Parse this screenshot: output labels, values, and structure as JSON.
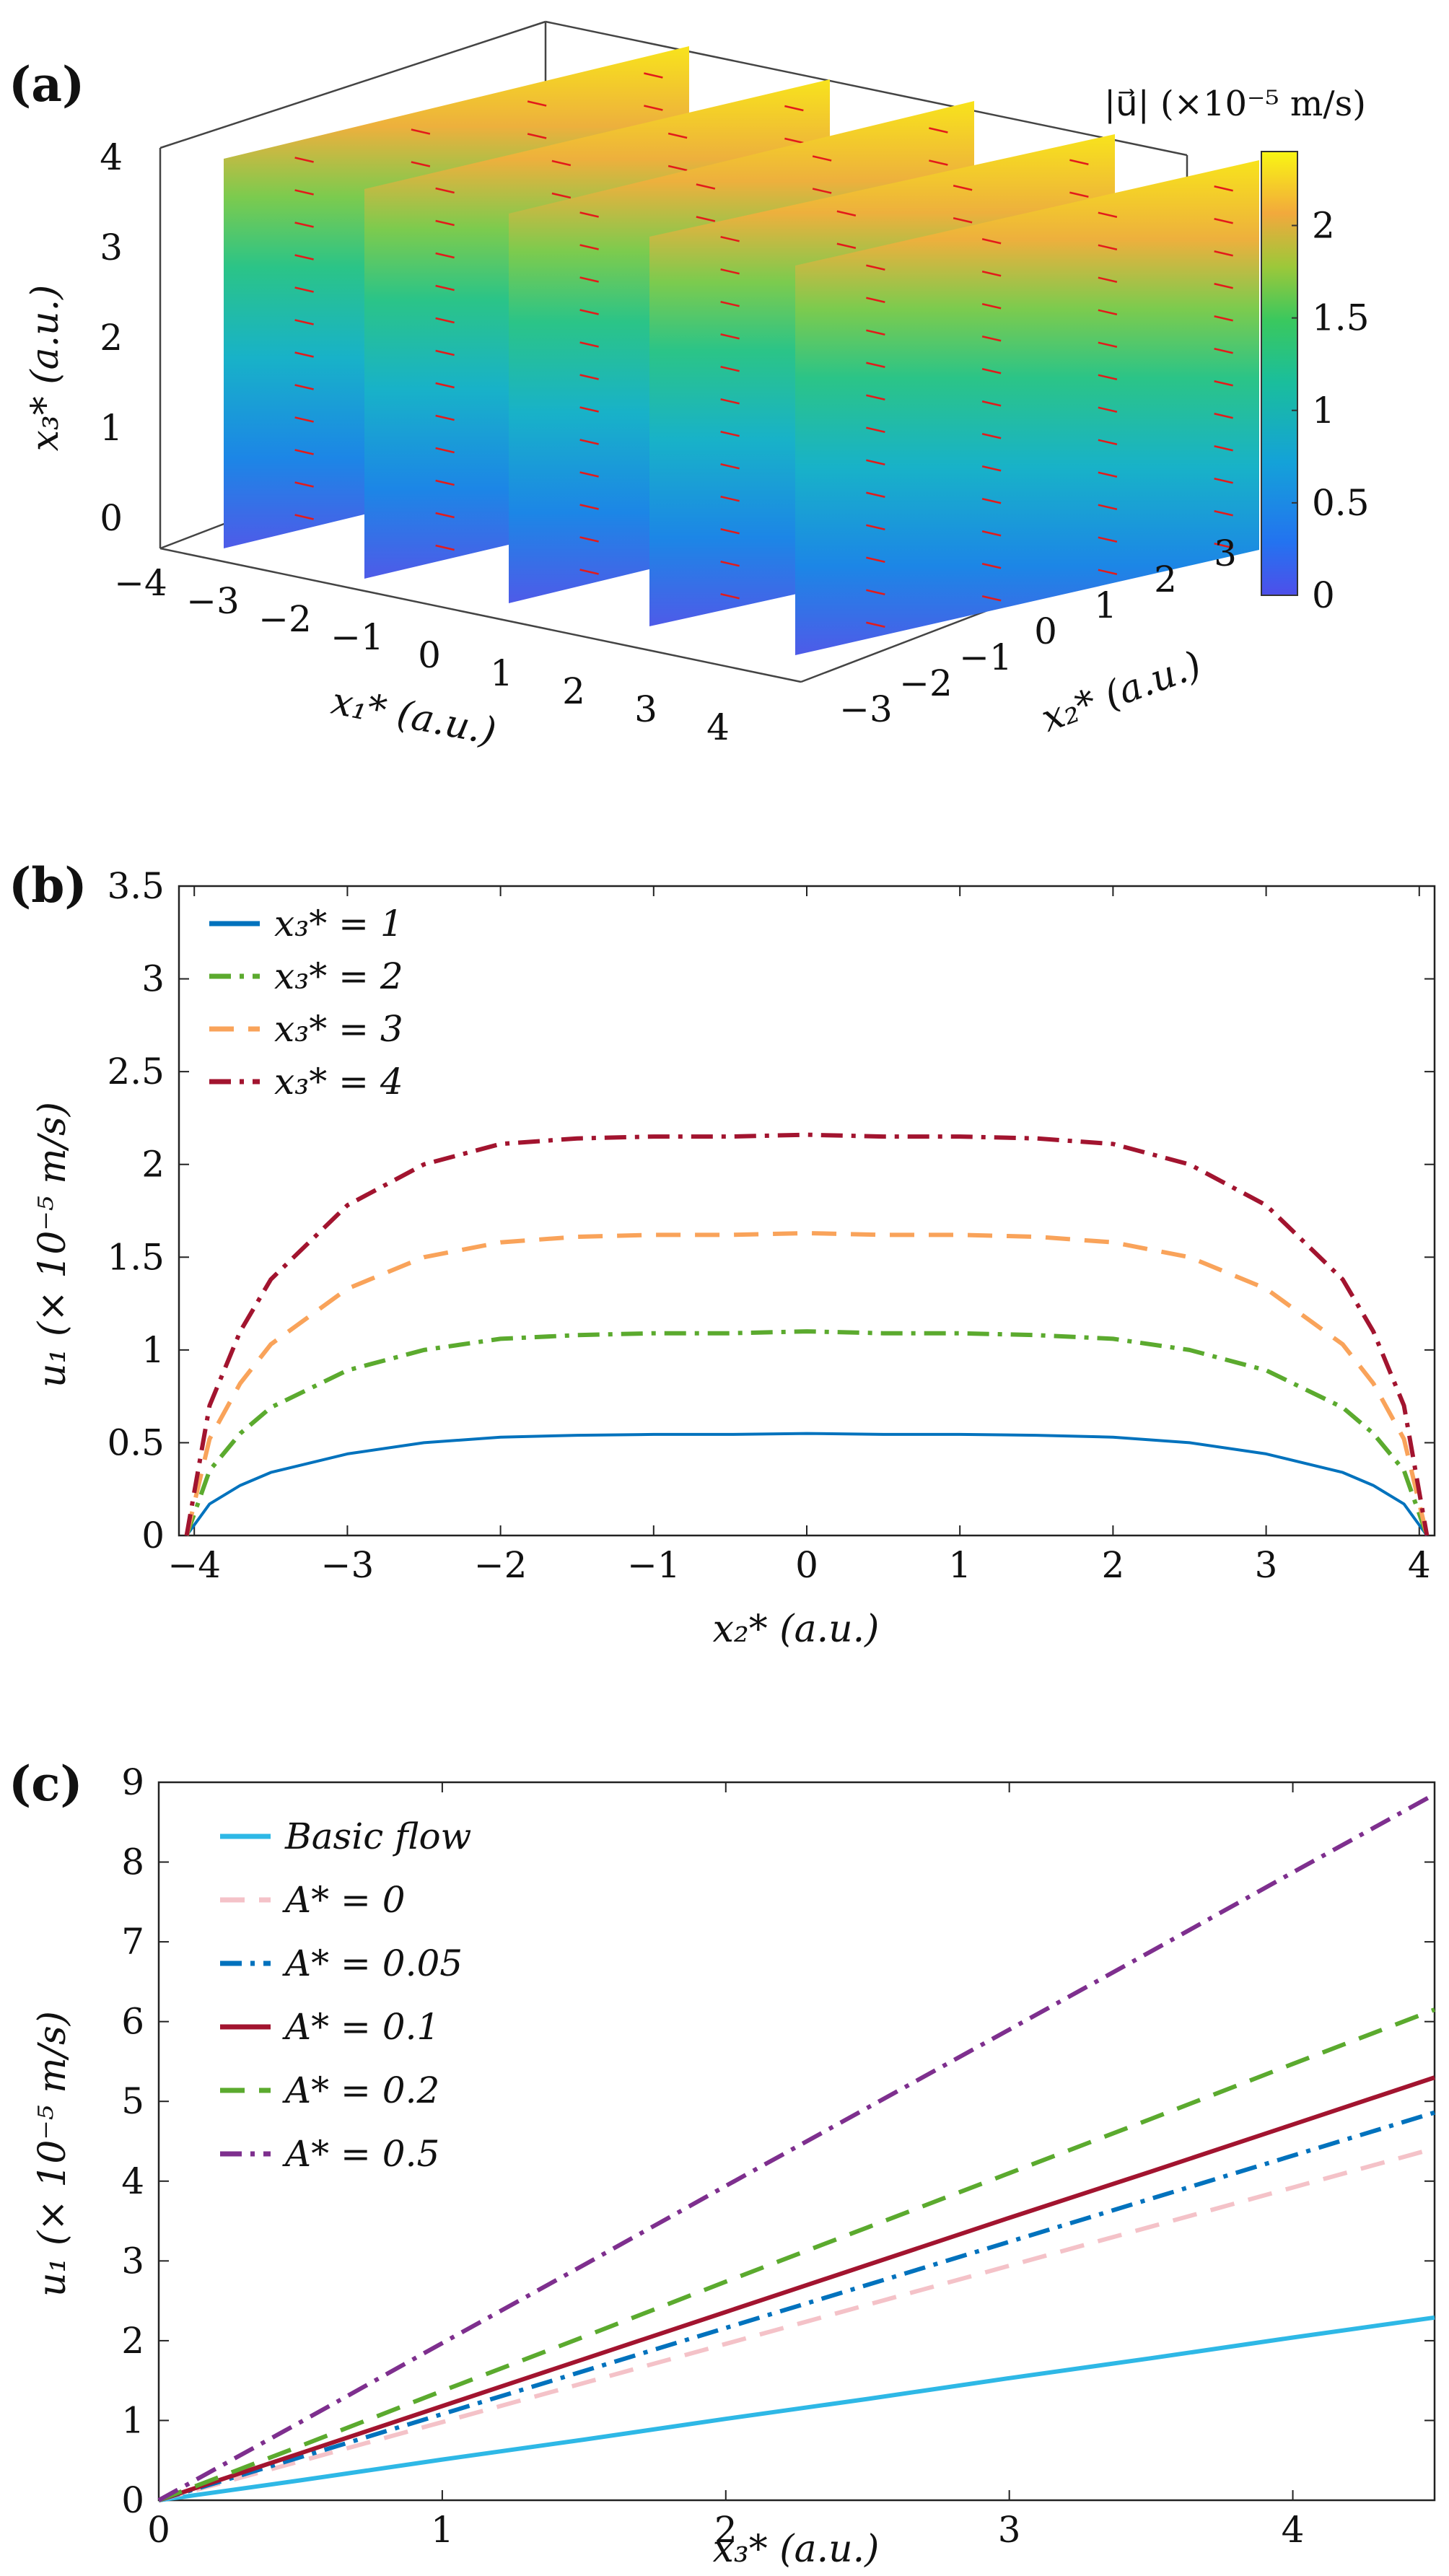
{
  "panel_a": {
    "label": "(a)",
    "colorbar_title": "|u⃗| (×10⁻⁵ m/s)",
    "colorbar_ticks": [
      "0",
      "0.5",
      "1",
      "1.5",
      "2"
    ],
    "colorbar_range": [
      0,
      2.4
    ],
    "x1_label": "x₁* (a.u.)",
    "x2_label": "x₂* (a.u.)",
    "x3_label": "x₃* (a.u.)",
    "x1_ticks": [
      "−4",
      "−3",
      "−2",
      "−1",
      "0",
      "1",
      "2",
      "3",
      "4"
    ],
    "x2_ticks": [
      "−3",
      "−2",
      "−1",
      "0",
      "1",
      "2",
      "3"
    ],
    "x3_ticks": [
      "0",
      "1",
      "2",
      "3",
      "4"
    ],
    "slice_count": 5
  },
  "chart_data": [
    {
      "id": "b",
      "type": "line",
      "panel_label": "(b)",
      "xlabel": "x₂* (a.u.)",
      "ylabel": "u₁ (× 10⁻⁵ m/s)",
      "xlim": [
        -4.1,
        4.1
      ],
      "ylim": [
        0,
        3.5
      ],
      "xticks": [
        -4,
        -3,
        -2,
        -1,
        0,
        1,
        2,
        3,
        4
      ],
      "xtick_labels": [
        "−4",
        "−3",
        "−2",
        "−1",
        "0",
        "1",
        "2",
        "3",
        "4"
      ],
      "yticks": [
        0,
        0.5,
        1,
        1.5,
        2,
        2.5,
        3,
        3.5
      ],
      "ytick_labels": [
        "0",
        "0.5",
        "1",
        "1.5",
        "2",
        "2.5",
        "3",
        "3.5"
      ],
      "legend_position": "top-left",
      "x": [
        -4.05,
        -3.9,
        -3.7,
        -3.5,
        -3.0,
        -2.5,
        -2.0,
        -1.5,
        -1.0,
        -0.5,
        0.0,
        0.5,
        1.0,
        1.5,
        2.0,
        2.5,
        3.0,
        3.5,
        3.7,
        3.9,
        4.05
      ],
      "series": [
        {
          "name": "x₃* = 1",
          "color": "#0072BD",
          "dash": "solid",
          "values": [
            0.0,
            0.17,
            0.27,
            0.34,
            0.44,
            0.5,
            0.53,
            0.54,
            0.545,
            0.545,
            0.55,
            0.545,
            0.545,
            0.54,
            0.53,
            0.5,
            0.44,
            0.34,
            0.27,
            0.17,
            0.0
          ]
        },
        {
          "name": "x₃* = 2",
          "color": "#5BAA2E",
          "dash": "dashdot",
          "values": [
            0.0,
            0.35,
            0.55,
            0.69,
            0.89,
            1.0,
            1.06,
            1.08,
            1.09,
            1.09,
            1.1,
            1.09,
            1.09,
            1.08,
            1.06,
            1.0,
            0.89,
            0.69,
            0.55,
            0.35,
            0.0
          ]
        },
        {
          "name": "x₃* = 3",
          "color": "#F9A35A",
          "dash": "dashed",
          "values": [
            0.0,
            0.52,
            0.82,
            1.03,
            1.33,
            1.5,
            1.58,
            1.61,
            1.62,
            1.62,
            1.63,
            1.62,
            1.62,
            1.61,
            1.58,
            1.5,
            1.33,
            1.03,
            0.82,
            0.52,
            0.0
          ]
        },
        {
          "name": "x₃* = 4",
          "color": "#A2142F",
          "dash": "dashdot",
          "values": [
            0.0,
            0.7,
            1.1,
            1.38,
            1.78,
            2.0,
            2.11,
            2.14,
            2.15,
            2.15,
            2.16,
            2.15,
            2.15,
            2.14,
            2.11,
            2.0,
            1.78,
            1.38,
            1.1,
            0.7,
            0.0
          ]
        }
      ]
    },
    {
      "id": "c",
      "type": "line",
      "panel_label": "(c)",
      "xlabel": "x₃* (a.u.)",
      "ylabel": "u₁ (× 10⁻⁵ m/s)",
      "xlim": [
        0,
        4.5
      ],
      "ylim": [
        0,
        9
      ],
      "xticks": [
        0,
        1,
        2,
        3,
        4
      ],
      "xtick_labels": [
        "0",
        "1",
        "2",
        "3",
        "4"
      ],
      "yticks": [
        0,
        1,
        2,
        3,
        4,
        5,
        6,
        7,
        8,
        9
      ],
      "ytick_labels": [
        "0",
        "1",
        "2",
        "3",
        "4",
        "5",
        "6",
        "7",
        "8",
        "9"
      ],
      "legend_position": "top-left",
      "x": [
        0,
        0.5,
        1.0,
        1.5,
        2.0,
        2.5,
        3.0,
        3.5,
        4.0,
        4.5
      ],
      "series": [
        {
          "name": "Basic flow",
          "color": "#2EB8E6",
          "dash": "solid",
          "values": [
            0,
            0.25,
            0.51,
            0.76,
            1.02,
            1.27,
            1.53,
            1.78,
            2.04,
            2.29
          ]
        },
        {
          "name": "A* = 0",
          "color": "#F4C2C8",
          "dash": "dashed",
          "values": [
            0,
            0.49,
            0.98,
            1.47,
            1.96,
            2.45,
            2.94,
            3.43,
            3.92,
            4.41
          ]
        },
        {
          "name": "A* = 0.05",
          "color": "#0072BD",
          "dash": "dashdot",
          "values": [
            0,
            0.54,
            1.08,
            1.62,
            2.16,
            2.7,
            3.24,
            3.78,
            4.32,
            4.86
          ]
        },
        {
          "name": "A* = 0.1",
          "color": "#A2142F",
          "dash": "solid",
          "values": [
            0,
            0.59,
            1.18,
            1.77,
            2.36,
            2.95,
            3.54,
            4.12,
            4.71,
            5.3
          ]
        },
        {
          "name": "A* = 0.2",
          "color": "#5BAA2E",
          "dash": "dashed",
          "values": [
            0,
            0.68,
            1.37,
            2.05,
            2.74,
            3.42,
            4.1,
            4.78,
            5.47,
            6.15
          ]
        },
        {
          "name": "A* = 0.5",
          "color": "#7E2F8E",
          "dash": "dashdot",
          "values": [
            0,
            0.98,
            1.97,
            2.95,
            3.94,
            4.92,
            5.9,
            6.88,
            7.87,
            8.85
          ]
        }
      ]
    }
  ]
}
